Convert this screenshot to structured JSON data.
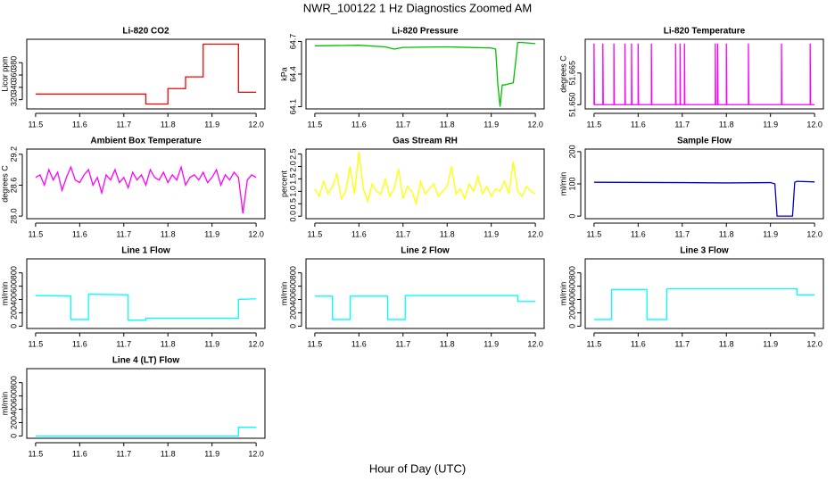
{
  "page": {
    "title": "NWR_100122  1 Hz Diagnostics Zoomed AM",
    "xlabel": "Hour of Day (UTC)"
  },
  "chart_data": [
    {
      "type": "line",
      "title": "Li-820 CO2",
      "ylabel": "Licor ppm",
      "color": "#ff0000",
      "x": [
        11.5,
        11.75,
        11.75,
        11.8,
        11.8,
        11.84,
        11.84,
        11.88,
        11.88,
        11.96,
        11.96,
        12.0
      ],
      "values": [
        329,
        329,
        313,
        313,
        338,
        338,
        357,
        357,
        410,
        410,
        332,
        332
      ],
      "xlim": [
        11.48,
        12.02
      ],
      "xticks": [
        11.5,
        11.6,
        11.7,
        11.8,
        11.9,
        {
          "value": 12,
          "label": "12.0"
        }
      ],
      "ylim": [
        305,
        418
      ],
      "yticks": [
        320,
        340,
        360,
        380
      ]
    },
    {
      "type": "line",
      "title": "Li-820 Pressure",
      "ylabel": "kPa",
      "color": "#00c000",
      "x": [
        11.5,
        11.6,
        11.66,
        11.68,
        11.7,
        11.8,
        11.9,
        11.91,
        11.915,
        11.92,
        11.925,
        11.93,
        11.95,
        11.955,
        11.96,
        11.97,
        12.0
      ],
      "values": [
        64.66,
        64.665,
        64.65,
        64.63,
        64.645,
        64.65,
        64.64,
        64.63,
        64.3,
        64.1,
        64.3,
        64.3,
        64.32,
        64.5,
        64.69,
        64.69,
        64.68
      ],
      "xlim": [
        11.48,
        12.02
      ],
      "xticks": [
        11.5,
        11.6,
        11.7,
        11.8,
        11.9,
        {
          "value": 12,
          "label": "12.0"
        }
      ],
      "ylim": [
        64.08,
        64.72
      ],
      "yticks": [
        64.1,
        64.4,
        64.7
      ]
    },
    {
      "type": "line",
      "title": "Li-820 Temperature",
      "ylabel": "degrees C",
      "color": "#ff00ff",
      "x": [
        11.5,
        11.5,
        11.501,
        11.52,
        11.52,
        11.521,
        11.545,
        11.545,
        11.546,
        11.57,
        11.57,
        11.571,
        11.585,
        11.585,
        11.586,
        11.6,
        11.6,
        11.601,
        11.63,
        11.63,
        11.631,
        11.685,
        11.685,
        11.686,
        11.695,
        11.695,
        11.696,
        11.705,
        11.705,
        11.706,
        11.775,
        11.775,
        11.776,
        11.78,
        11.78,
        11.781,
        11.8,
        11.8,
        11.801,
        11.85,
        11.85,
        11.851,
        11.925,
        11.925,
        11.926,
        11.99,
        11.99,
        11.991,
        12.0
      ],
      "values": [
        51.65,
        51.679,
        51.65,
        51.65,
        51.679,
        51.65,
        51.65,
        51.679,
        51.65,
        51.65,
        51.679,
        51.65,
        51.65,
        51.679,
        51.65,
        51.65,
        51.679,
        51.65,
        51.65,
        51.679,
        51.65,
        51.65,
        51.679,
        51.65,
        51.65,
        51.679,
        51.65,
        51.65,
        51.679,
        51.65,
        51.65,
        51.679,
        51.65,
        51.65,
        51.679,
        51.65,
        51.65,
        51.679,
        51.65,
        51.65,
        51.679,
        51.65,
        51.65,
        51.679,
        51.65,
        51.65,
        51.679,
        51.65,
        51.65
      ],
      "xlim": [
        11.48,
        12.02
      ],
      "xticks": [
        11.5,
        11.6,
        11.7,
        11.8,
        11.9,
        {
          "value": 12,
          "label": "12.0"
        }
      ],
      "ylim": [
        51.648,
        51.681
      ],
      "yticks": [
        {
          "value": 51.65,
          "label": "51.650"
        },
        {
          "value": 51.665,
          "label": "51.665"
        }
      ]
    },
    {
      "type": "line",
      "title": "Ambient Box Temperature",
      "ylabel": "degrees C",
      "color": "#ff00ff",
      "x": [
        11.5,
        11.51,
        11.52,
        11.53,
        11.54,
        11.55,
        11.56,
        11.57,
        11.58,
        11.59,
        11.6,
        11.61,
        11.62,
        11.63,
        11.64,
        11.65,
        11.66,
        11.67,
        11.68,
        11.69,
        11.7,
        11.71,
        11.72,
        11.73,
        11.74,
        11.75,
        11.76,
        11.77,
        11.78,
        11.79,
        11.8,
        11.81,
        11.82,
        11.83,
        11.84,
        11.85,
        11.86,
        11.87,
        11.88,
        11.89,
        11.9,
        11.91,
        11.92,
        11.93,
        11.94,
        11.95,
        11.96,
        11.97,
        11.98,
        11.99,
        12.0
      ],
      "values": [
        28.75,
        28.8,
        28.6,
        28.9,
        28.7,
        28.85,
        28.5,
        28.75,
        28.95,
        28.7,
        28.65,
        28.8,
        28.9,
        28.6,
        28.75,
        28.45,
        28.8,
        28.7,
        28.9,
        28.65,
        28.75,
        28.55,
        28.85,
        28.7,
        28.8,
        28.6,
        28.9,
        28.75,
        28.7,
        28.85,
        28.65,
        28.8,
        28.7,
        28.95,
        28.6,
        28.75,
        28.8,
        28.7,
        28.85,
        28.65,
        28.75,
        28.9,
        28.6,
        28.8,
        28.7,
        28.85,
        28.75,
        28.05,
        28.7,
        28.8,
        28.75
      ],
      "xlim": [
        11.48,
        12.02
      ],
      "xticks": [
        11.5,
        11.6,
        11.7,
        11.8,
        11.9,
        {
          "value": 12,
          "label": "12.0"
        }
      ],
      "ylim": [
        27.95,
        29.3
      ],
      "yticks": [
        {
          "value": 28,
          "label": "28.0"
        },
        28.6,
        29.2
      ]
    },
    {
      "type": "line",
      "title": "Gas Stream RH",
      "ylabel": "percent",
      "color": "#ffff00",
      "x": [
        11.5,
        11.51,
        11.52,
        11.53,
        11.54,
        11.55,
        11.56,
        11.57,
        11.58,
        11.59,
        11.6,
        11.61,
        11.62,
        11.63,
        11.64,
        11.65,
        11.66,
        11.67,
        11.68,
        11.69,
        11.7,
        11.71,
        11.72,
        11.73,
        11.74,
        11.75,
        11.76,
        11.77,
        11.78,
        11.79,
        11.8,
        11.81,
        11.82,
        11.83,
        11.84,
        11.85,
        11.86,
        11.87,
        11.88,
        11.89,
        11.9,
        11.91,
        11.92,
        11.93,
        11.94,
        11.95,
        11.96,
        11.97,
        11.98,
        11.99,
        12.0
      ],
      "values": [
        1.1,
        0.8,
        1.4,
        0.9,
        1.2,
        1.7,
        0.7,
        1.0,
        2.0,
        0.9,
        2.6,
        1.1,
        0.6,
        1.3,
        1.0,
        0.9,
        1.5,
        0.8,
        1.1,
        1.9,
        0.7,
        1.2,
        1.0,
        0.5,
        1.4,
        0.9,
        1.1,
        1.3,
        0.8,
        1.0,
        1.2,
        2.0,
        0.9,
        1.1,
        0.7,
        1.3,
        1.0,
        1.6,
        0.9,
        1.2,
        0.8,
        1.1,
        1.0,
        1.4,
        0.9,
        2.2,
        1.0,
        0.8,
        1.2,
        1.0,
        0.9
      ],
      "xlim": [
        11.48,
        12.02
      ],
      "xticks": [
        11.5,
        11.6,
        11.7,
        11.8,
        11.9,
        {
          "value": 12,
          "label": "12.0"
        }
      ],
      "ylim": [
        -0.1,
        2.7
      ],
      "yticks": [
        {
          "value": 0,
          "label": "0.0"
        },
        0.5,
        {
          "value": 1,
          "label": "1.0"
        },
        1.5,
        {
          "value": 2,
          "label": "2.0"
        },
        2.5
      ]
    },
    {
      "type": "line",
      "title": "Sample Flow",
      "ylabel": "ml/min",
      "color": "#0000cc",
      "x": [
        11.5,
        11.7,
        11.8,
        11.9,
        11.91,
        11.915,
        11.95,
        11.955,
        11.96,
        12.0
      ],
      "values": [
        105,
        104,
        103,
        104,
        100,
        0,
        0,
        105,
        108,
        106
      ],
      "xlim": [
        11.48,
        12.02
      ],
      "xticks": [
        11.5,
        11.6,
        11.7,
        11.8,
        11.9,
        {
          "value": 12,
          "label": "12.0"
        }
      ],
      "ylim": [
        -8,
        208
      ],
      "yticks": [
        0,
        100,
        200
      ]
    },
    {
      "type": "line",
      "title": "Line 1 Flow",
      "ylabel": "ml/min",
      "color": "#00ffff",
      "x": [
        11.5,
        11.58,
        11.58,
        11.62,
        11.62,
        11.71,
        11.71,
        11.75,
        11.75,
        11.96,
        11.96,
        12.0
      ],
      "values": [
        460,
        450,
        100,
        100,
        480,
        470,
        90,
        90,
        120,
        120,
        400,
        410
      ],
      "xlim": [
        11.48,
        12.02
      ],
      "xticks": [
        11.5,
        11.6,
        11.7,
        11.8,
        11.9,
        {
          "value": 12,
          "label": "12.0"
        }
      ],
      "ylim": [
        -35,
        1010
      ],
      "yticks": [
        0,
        200,
        400,
        600,
        800
      ]
    },
    {
      "type": "line",
      "title": "Line 2 Flow",
      "ylabel": "ml/min",
      "color": "#00ffff",
      "x": [
        11.5,
        11.54,
        11.54,
        11.58,
        11.58,
        11.665,
        11.665,
        11.705,
        11.705,
        11.96,
        11.96,
        12.0
      ],
      "values": [
        450,
        450,
        100,
        100,
        450,
        450,
        100,
        100,
        460,
        460,
        370,
        370
      ],
      "xlim": [
        11.48,
        12.02
      ],
      "xticks": [
        11.5,
        11.6,
        11.7,
        11.8,
        11.9,
        {
          "value": 12,
          "label": "12.0"
        }
      ],
      "ylim": [
        -35,
        1010
      ],
      "yticks": [
        0,
        200,
        400,
        600,
        800
      ]
    },
    {
      "type": "line",
      "title": "Line 3 Flow",
      "ylabel": "ml/min",
      "color": "#00ffff",
      "x": [
        11.5,
        11.54,
        11.54,
        11.62,
        11.62,
        11.665,
        11.665,
        11.96,
        11.96,
        12.0
      ],
      "values": [
        100,
        100,
        550,
        550,
        100,
        100,
        560,
        560,
        470,
        470
      ],
      "xlim": [
        11.48,
        12.02
      ],
      "xticks": [
        11.5,
        11.6,
        11.7,
        11.8,
        11.9,
        {
          "value": 12,
          "label": "12.0"
        }
      ],
      "ylim": [
        -35,
        1010
      ],
      "yticks": [
        0,
        200,
        400,
        600,
        800
      ]
    },
    {
      "type": "line",
      "title": "Line 4 (LT) Flow",
      "ylabel": "ml/min",
      "color": "#00ffff",
      "x": [
        11.5,
        11.96,
        11.96,
        12.0
      ],
      "values": [
        0,
        0,
        130,
        130
      ],
      "xlim": [
        11.48,
        12.02
      ],
      "xticks": [
        11.5,
        11.6,
        11.7,
        11.8,
        11.9,
        {
          "value": 12,
          "label": "12.0"
        }
      ],
      "ylim": [
        -35,
        1010
      ],
      "yticks": [
        0,
        200,
        400,
        600,
        800
      ]
    }
  ]
}
